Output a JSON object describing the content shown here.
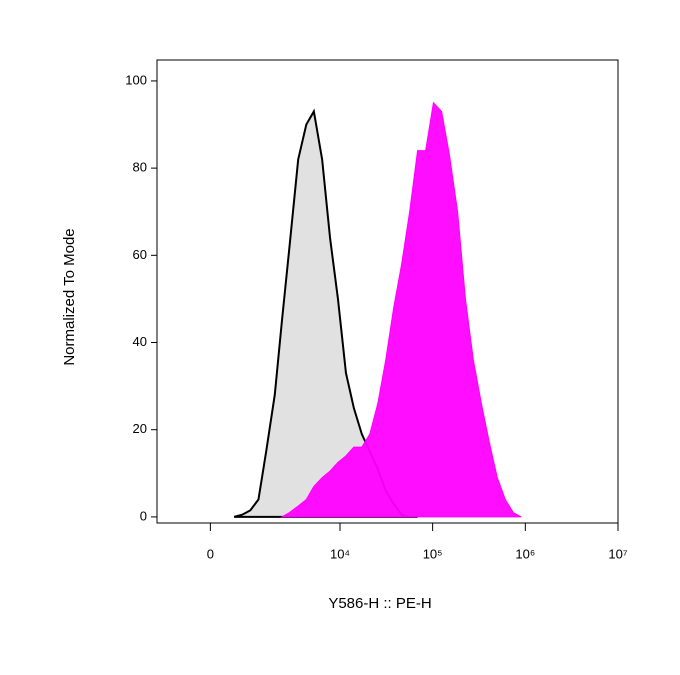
{
  "chart_data": {
    "type": "area",
    "x_label": "Y586-H :: PE-H",
    "y_label": "Normalized To Mode",
    "xscale": "arcsinh",
    "xlim": [
      -1400,
      10000000
    ],
    "xticks": [
      0,
      {
        "value": 10000,
        "label": "10⁴"
      },
      {
        "value": 100000,
        "label": "10⁵"
      },
      {
        "value": 1000000,
        "label": "10⁶"
      },
      {
        "value": 10000000,
        "label": "10⁷"
      }
    ],
    "ylim": [
      -1.4,
      104.8
    ],
    "yticks": [
      0,
      20,
      40,
      60,
      80,
      100
    ],
    "x": [
      500,
      700,
      930,
      1200,
      1500,
      1900,
      2300,
      2800,
      3500,
      4300,
      5200,
      6400,
      7800,
      9500,
      11600,
      14100,
      17200,
      21000,
      25600,
      31200,
      38000,
      46300,
      56500,
      68800,
      84000,
      102000,
      125000,
      152000,
      186000,
      226000,
      275000,
      336000,
      410000,
      499000,
      608000,
      742000,
      904000
    ],
    "series": [
      {
        "color": "#c8c8c8",
        "values": [
          0,
          0.5,
          1.5,
          4,
          15,
          28,
          45,
          62,
          82,
          90,
          93,
          82,
          64,
          50,
          33,
          25,
          19,
          15,
          11,
          6,
          3,
          0.5,
          0,
          0,
          null,
          null,
          null,
          null,
          null,
          null,
          null,
          null,
          null,
          null,
          null,
          null,
          null
        ]
      },
      {
        "color": "#ff00ff",
        "values": [
          null,
          null,
          null,
          null,
          null,
          null,
          0,
          1,
          2.5,
          4,
          7,
          9,
          10.5,
          12.5,
          14,
          16,
          16,
          19,
          26,
          36,
          48,
          58,
          70,
          84,
          84,
          95,
          93,
          83,
          70,
          50,
          36,
          26,
          17,
          9,
          4,
          1,
          0
        ]
      }
    ]
  }
}
